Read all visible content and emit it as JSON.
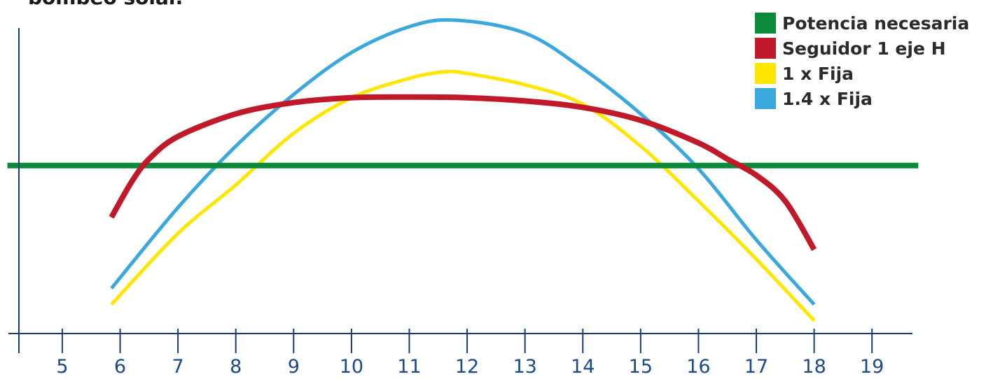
{
  "chart_data": {
    "type": "line",
    "title_fragment": "bombeo solar.",
    "xlabel": "",
    "ylabel": "",
    "x_ticks": [
      5,
      6,
      7,
      8,
      9,
      10,
      11,
      12,
      13,
      14,
      15,
      16,
      17,
      18,
      19
    ],
    "xlim": [
      4.25,
      19.7
    ],
    "ylim": [
      0,
      100
    ],
    "legend_position": "top-right",
    "series": [
      {
        "name": "Potencia necesaria",
        "color": "#0b8a3a",
        "x": [
          4.05,
          19.8
        ],
        "y": [
          52,
          52
        ]
      },
      {
        "name": "Seguidor 1 eje H",
        "color": "#c01a2a",
        "x": [
          5.85,
          6.2,
          6.5,
          7,
          8,
          9,
          10,
          11,
          12,
          13,
          14,
          15,
          16,
          16.5,
          17,
          17.5,
          18
        ],
        "y": [
          36,
          47,
          54,
          61,
          68,
          71.5,
          73,
          73.2,
          73,
          72,
          70,
          66,
          59,
          54,
          49,
          41,
          26
        ]
      },
      {
        "name": "1 x Fija",
        "color": "#ffe600",
        "x": [
          5.85,
          7,
          8,
          9,
          10,
          11,
          11.6,
          12,
          13,
          14,
          15,
          16,
          17,
          18
        ],
        "y": [
          9,
          31,
          46,
          62,
          73,
          79,
          81,
          80.5,
          77,
          71,
          58,
          41,
          23,
          4
        ]
      },
      {
        "name": "1.4 x Fija",
        "color": "#3aa8dd",
        "x": [
          5.85,
          7,
          8,
          9,
          10,
          11,
          11.8,
          13,
          14,
          15,
          16,
          17,
          18
        ],
        "y": [
          14,
          39,
          58,
          74,
          87,
          95,
          97,
          93,
          82,
          68,
          51,
          29,
          9
        ]
      }
    ]
  }
}
